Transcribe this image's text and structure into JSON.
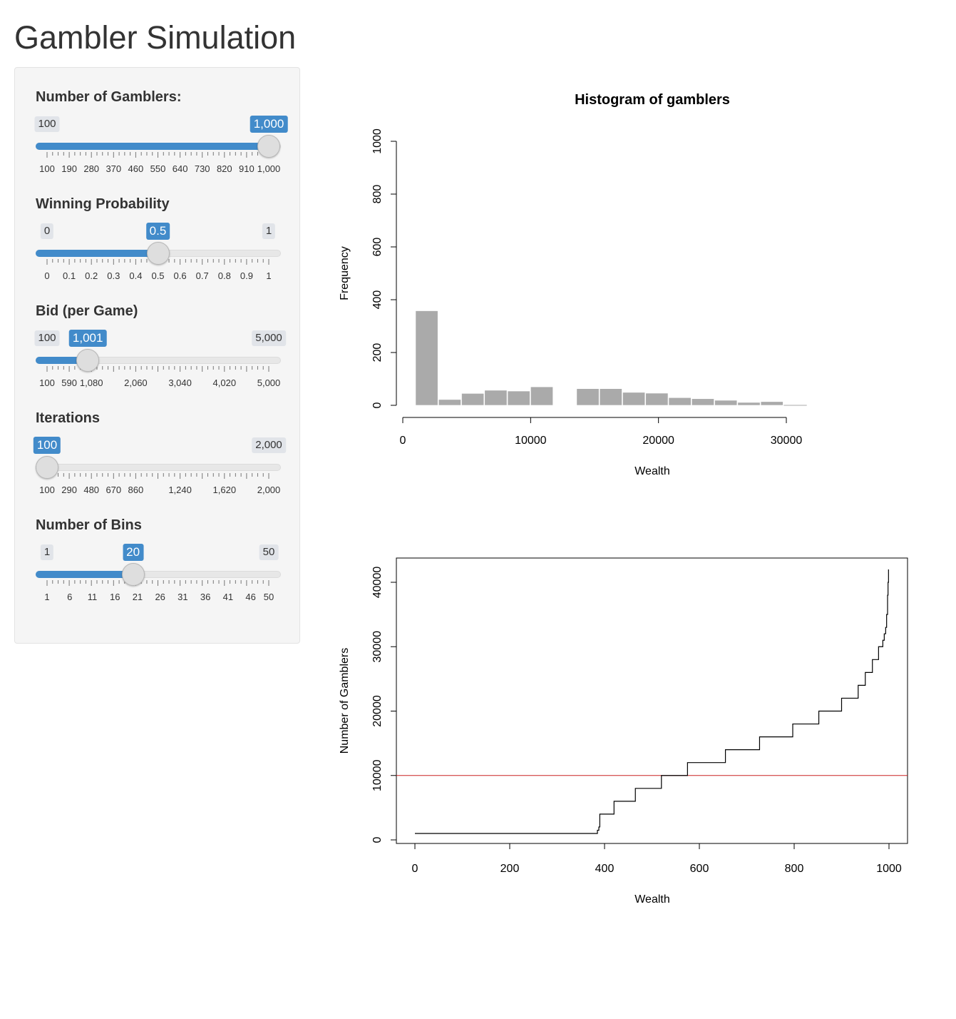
{
  "title": "Gambler Simulation",
  "sliders": [
    {
      "id": "gamblers",
      "label": "Number of Gamblers:",
      "min": 100,
      "max": 1000,
      "value": 1000,
      "min_label": "100",
      "max_label": "1,000",
      "value_label": "1,000",
      "ticks": [
        "100",
        "190",
        "280",
        "370",
        "460",
        "550",
        "640",
        "730",
        "820",
        "910",
        "1,000"
      ],
      "fill_from_start": true
    },
    {
      "id": "prob",
      "label": "Winning Probability",
      "min": 0,
      "max": 1,
      "value": 0.5,
      "min_label": "0",
      "max_label": "1",
      "value_label": "0.5",
      "ticks": [
        "0",
        "0.1",
        "0.2",
        "0.3",
        "0.4",
        "0.5",
        "0.6",
        "0.7",
        "0.8",
        "0.9",
        "1"
      ],
      "fill_from_start": true
    },
    {
      "id": "bid",
      "label": "Bid (per Game)",
      "min": 100,
      "max": 5000,
      "value": 1001,
      "min_label": "100",
      "max_label": "5,000",
      "value_label": "1,001",
      "ticks": [
        "100",
        "590",
        "1,080",
        "2,060",
        "3,040",
        "4,020",
        "5,000"
      ],
      "tick_values": [
        100,
        590,
        1080,
        2060,
        3040,
        4020,
        5000
      ],
      "fill_from_start": true
    },
    {
      "id": "iter",
      "label": "Iterations",
      "min": 100,
      "max": 2000,
      "value": 100,
      "min_label": "100",
      "max_label": "2,000",
      "value_label": "100",
      "ticks": [
        "100",
        "290",
        "480",
        "670",
        "860",
        "1,240",
        "1,620",
        "2,000"
      ],
      "tick_values": [
        100,
        290,
        480,
        670,
        860,
        1240,
        1620,
        2000
      ],
      "fill_from_start": true
    },
    {
      "id": "bins",
      "label": "Number of Bins",
      "min": 1,
      "max": 50,
      "value": 20,
      "min_label": "1",
      "max_label": "50",
      "value_label": "20",
      "ticks": [
        "1",
        "6",
        "11",
        "16",
        "21",
        "26",
        "31",
        "36",
        "41",
        "46",
        "50"
      ],
      "tick_values": [
        1,
        6,
        11,
        16,
        21,
        26,
        31,
        36,
        41,
        46,
        50
      ],
      "fill_from_start": true
    }
  ],
  "chart_data": [
    {
      "type": "bar",
      "title": "Histogram of gamblers",
      "xlabel": "Wealth",
      "ylabel": "Frequency",
      "xlim": [
        0,
        32500
      ],
      "ylim": [
        0,
        1000
      ],
      "xticks": [
        "0",
        "10000",
        "20000",
        "30000"
      ],
      "xtick_values": [
        0,
        10000,
        20000,
        30000
      ],
      "yticks": [
        "0",
        "200",
        "400",
        "600",
        "800",
        "1000"
      ],
      "ytick_values": [
        0,
        200,
        400,
        600,
        800,
        1000
      ],
      "bin_width": 1800,
      "bins": [
        {
          "x0": 1000,
          "count": 358
        },
        {
          "x0": 2800,
          "count": 22
        },
        {
          "x0": 4600,
          "count": 45
        },
        {
          "x0": 6400,
          "count": 57
        },
        {
          "x0": 8200,
          "count": 54
        },
        {
          "x0": 10000,
          "count": 70
        },
        {
          "x0": 11800,
          "count": 0
        },
        {
          "x0": 13600,
          "count": 63
        },
        {
          "x0": 15400,
          "count": 63
        },
        {
          "x0": 17200,
          "count": 49
        },
        {
          "x0": 19000,
          "count": 46
        },
        {
          "x0": 20800,
          "count": 29
        },
        {
          "x0": 22600,
          "count": 25
        },
        {
          "x0": 24400,
          "count": 19
        },
        {
          "x0": 26200,
          "count": 11
        },
        {
          "x0": 28000,
          "count": 14
        },
        {
          "x0": 29800,
          "count": 2
        }
      ],
      "bar_color": "#aaaaaa"
    },
    {
      "type": "line",
      "title": "",
      "xlabel": "Wealth",
      "ylabel": "Number of Gamblers",
      "xlim": [
        -40,
        1040
      ],
      "ylim": [
        -1000,
        43500
      ],
      "xticks": [
        "0",
        "200",
        "400",
        "600",
        "800",
        "1000"
      ],
      "xtick_values": [
        0,
        200,
        400,
        600,
        800,
        1000
      ],
      "yticks": [
        "0",
        "10000",
        "20000",
        "30000",
        "40000"
      ],
      "ytick_values": [
        0,
        10000,
        20000,
        30000,
        40000
      ],
      "step_line": [
        [
          0,
          1000
        ],
        [
          385,
          1000
        ],
        [
          385,
          1500
        ],
        [
          388,
          1500
        ],
        [
          388,
          2000
        ],
        [
          390,
          2000
        ],
        [
          390,
          4000
        ],
        [
          420,
          4000
        ],
        [
          420,
          6000
        ],
        [
          465,
          6000
        ],
        [
          465,
          8000
        ],
        [
          520,
          8000
        ],
        [
          520,
          10000
        ],
        [
          575,
          10000
        ],
        [
          575,
          12000
        ],
        [
          655,
          12000
        ],
        [
          655,
          14000
        ],
        [
          727,
          14000
        ],
        [
          727,
          16000
        ],
        [
          797,
          16000
        ],
        [
          797,
          18000
        ],
        [
          852,
          18000
        ],
        [
          852,
          20000
        ],
        [
          900,
          20000
        ],
        [
          900,
          22000
        ],
        [
          935,
          22000
        ],
        [
          935,
          24000
        ],
        [
          950,
          24000
        ],
        [
          950,
          26000
        ],
        [
          965,
          26000
        ],
        [
          965,
          28000
        ],
        [
          978,
          28000
        ],
        [
          978,
          30000
        ],
        [
          987,
          30000
        ],
        [
          987,
          31000
        ],
        [
          990,
          31000
        ],
        [
          990,
          32000
        ],
        [
          993,
          32000
        ],
        [
          993,
          33000
        ],
        [
          995,
          33000
        ],
        [
          995,
          35000
        ],
        [
          997,
          35000
        ],
        [
          997,
          38000
        ],
        [
          998,
          38000
        ],
        [
          998,
          40000
        ],
        [
          999,
          40000
        ],
        [
          999,
          42000
        ]
      ],
      "reference_line": 10000,
      "reference_color": "#cc2222"
    }
  ]
}
